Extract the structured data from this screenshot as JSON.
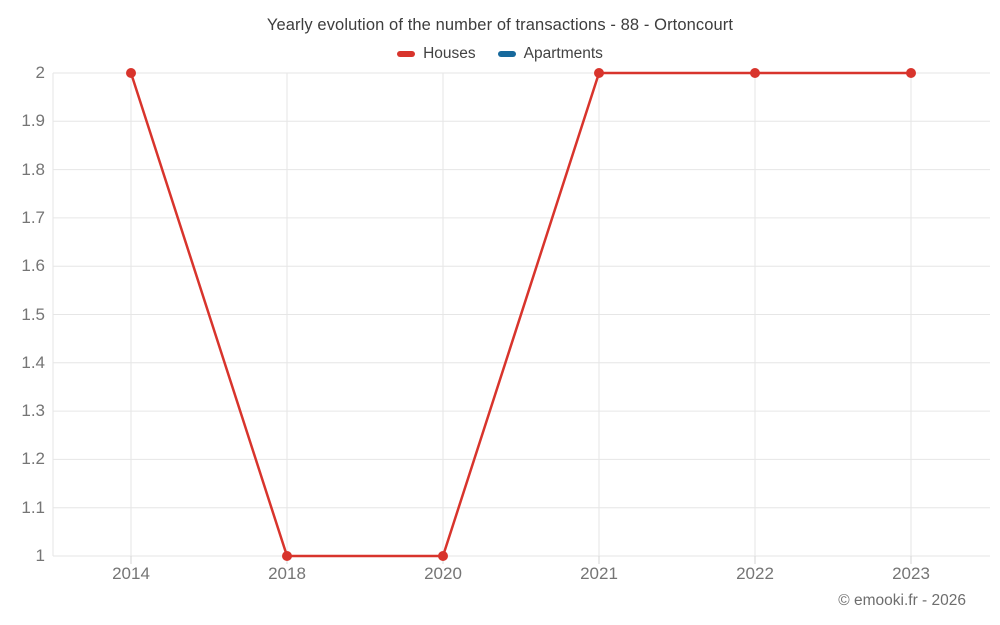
{
  "title": "Yearly evolution of the number of transactions - 88 - Ortoncourt",
  "legend": [
    {
      "label": "Houses",
      "color": "#d8342c"
    },
    {
      "label": "Apartments",
      "color": "#17699c"
    }
  ],
  "footer": "© emooki.fr - 2026",
  "colors": {
    "houses": "#d8342c",
    "apartments": "#17699c",
    "gridline": "#e6e6e6",
    "tick": "#d6d6d6",
    "axis_label": "#757575",
    "title_text": "#3d3d3d"
  },
  "chart_data": {
    "type": "line",
    "categories": [
      "2014",
      "2018",
      "2020",
      "2021",
      "2022",
      "2023"
    ],
    "series": [
      {
        "name": "Houses",
        "color": "#d8342c",
        "values": [
          2,
          1,
          1,
          2,
          2,
          2
        ]
      },
      {
        "name": "Apartments",
        "color": "#17699c",
        "values": []
      }
    ],
    "title": "Yearly evolution of the number of transactions - 88 - Ortoncourt",
    "xlabel": "",
    "ylabel": "",
    "ylim": [
      1,
      2
    ],
    "ytick_step": 0.1,
    "ytick_labels": [
      "1",
      "1.1",
      "1.2",
      "1.3",
      "1.4",
      "1.5",
      "1.6",
      "1.7",
      "1.8",
      "1.9",
      "2"
    ],
    "grid": true,
    "legend_position": "top",
    "marker_radius": 5,
    "line_width": 2.5
  }
}
